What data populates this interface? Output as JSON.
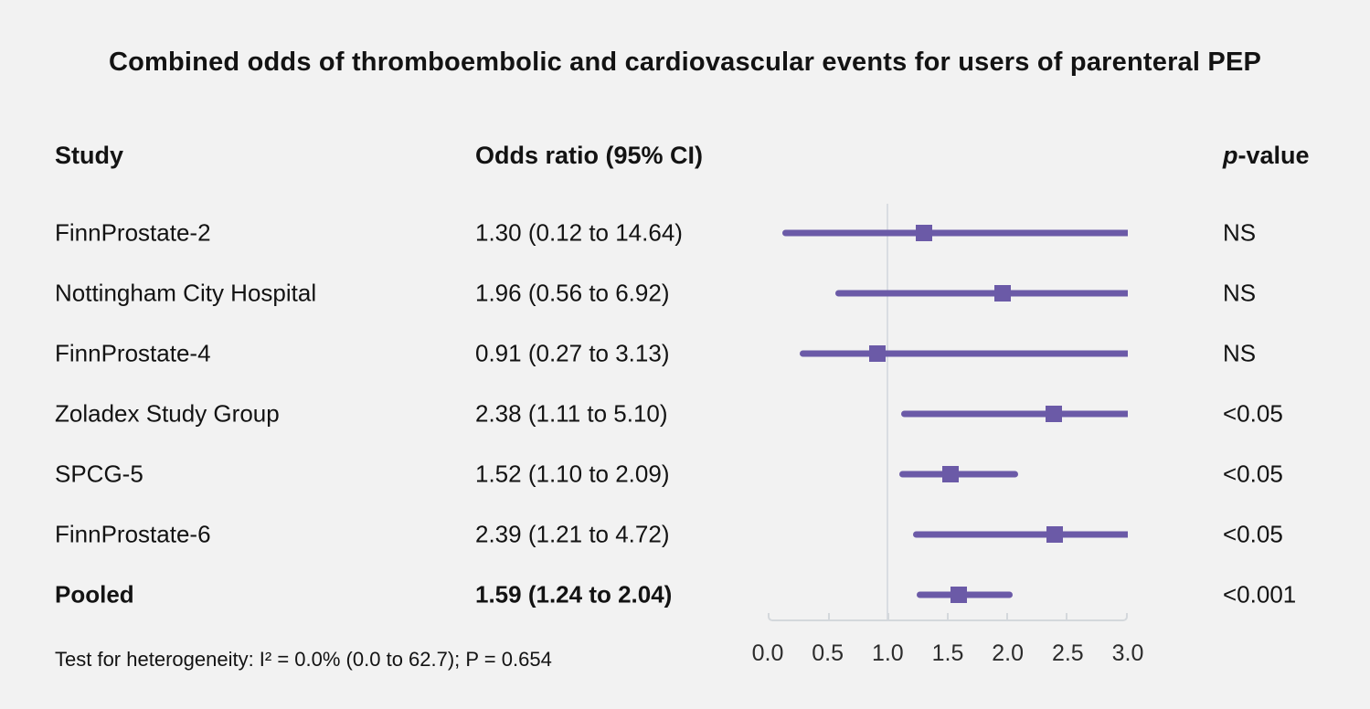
{
  "title": "Combined odds of thromboembolic and cardiovascular events for users of parenteral PEP",
  "columns": {
    "study": "Study",
    "odds_ratio": "Odds ratio (95% CI)",
    "p_value_italic": "p",
    "p_value_rest": "-value"
  },
  "footnote": "Test for heterogeneity: I² = 0.0% (0.0 to 62.7); P = 0.654",
  "colors": {
    "background": "#f2f2f2",
    "purple": "#6b5aa7",
    "reference_line": "#d9dde2",
    "axis_line": "#d4d8dc",
    "text": "#131313"
  },
  "chart_data": {
    "type": "forest",
    "title": "Combined odds of thromboembolic and cardiovascular events for users of parenteral PEP",
    "x_axis": {
      "min": 0.0,
      "max": 3.0,
      "tick_labels": [
        "0.0",
        "0.5",
        "1.0",
        "1.5",
        "2.0",
        "2.5",
        "3.0"
      ],
      "reference_value": 1.0,
      "clip_note": "Confidence intervals extending beyond 3.0 are truncated at the right edge of the plot"
    },
    "rows": [
      {
        "study": "FinnProstate-2",
        "or": 1.3,
        "ci_low": 0.12,
        "ci_high": 14.64,
        "or_label": "1.30 (0.12 to 14.64)",
        "p_value": "NS",
        "bold": false
      },
      {
        "study": "Nottingham City Hospital",
        "or": 1.96,
        "ci_low": 0.56,
        "ci_high": 6.92,
        "or_label": "1.96 (0.56 to 6.92)",
        "p_value": "NS",
        "bold": false
      },
      {
        "study": "FinnProstate-4",
        "or": 0.91,
        "ci_low": 0.27,
        "ci_high": 3.13,
        "or_label": "0.91 (0.27 to 3.13)",
        "p_value": "NS",
        "bold": false
      },
      {
        "study": "Zoladex Study Group",
        "or": 2.38,
        "ci_low": 1.11,
        "ci_high": 5.1,
        "or_label": "2.38 (1.11 to 5.10)",
        "p_value": "<0.05",
        "bold": false
      },
      {
        "study": "SPCG-5",
        "or": 1.52,
        "ci_low": 1.1,
        "ci_high": 2.09,
        "or_label": "1.52 (1.10 to 2.09)",
        "p_value": "<0.05",
        "bold": false
      },
      {
        "study": "FinnProstate-6",
        "or": 2.39,
        "ci_low": 1.21,
        "ci_high": 4.72,
        "or_label": "2.39 (1.21 to 4.72)",
        "p_value": "<0.05",
        "bold": false
      },
      {
        "study": "Pooled",
        "or": 1.59,
        "ci_low": 1.24,
        "ci_high": 2.04,
        "or_label": "1.59 (1.24 to 2.04)",
        "p_value": "<0.001",
        "bold": true
      }
    ],
    "heterogeneity": "Test for heterogeneity: I² = 0.0% (0.0 to 62.7); P = 0.654",
    "legend_position": "none",
    "grid": false
  }
}
